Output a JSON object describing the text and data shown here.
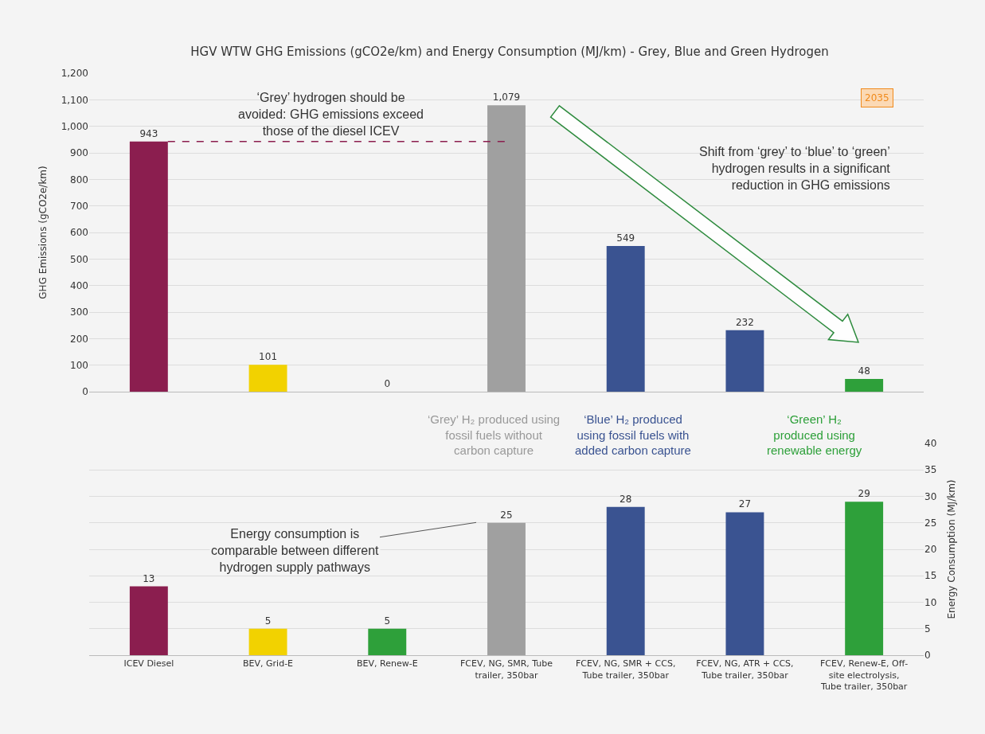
{
  "chart_data": [
    {
      "type": "bar",
      "title": "HGV WTW GHG Emissions (gCO2e/km) and Energy Consumption (MJ/km) - Grey, Blue and Green Hydrogen",
      "ylabel": "GHG Emissions (gCO2e/km)",
      "categories": [
        "ICEV Diesel",
        "BEV, Grid-E",
        "BEV, Renew-E",
        "FCEV, NG, SMR, Tube trailer, 350bar",
        "FCEV, NG, SMR + CCS, Tube trailer, 350bar",
        "FCEV, NG, ATR + CCS, Tube trailer, 350bar",
        "FCEV, Renew-E, Off-site electrolysis, Tube trailer, 350bar"
      ],
      "values": [
        943,
        101,
        0,
        1079,
        549,
        232,
        48
      ],
      "value_labels": [
        "943",
        "101",
        "0",
        "1,079",
        "549",
        "232",
        "48"
      ],
      "colors": [
        "#8b1e4f",
        "#f2d200",
        "#2ea03a",
        "#a0a0a0",
        "#3a5391",
        "#3a5391",
        "#2ea03a"
      ],
      "ylim": [
        0,
        1200
      ],
      "yticks": [
        0,
        100,
        200,
        300,
        400,
        500,
        600,
        700,
        800,
        900,
        {
          "value": 1000,
          "label": "1,000"
        },
        {
          "value": 1100,
          "label": "1,100"
        },
        {
          "value": 1200,
          "label": "1,200"
        }
      ],
      "grid": "y",
      "tick_labels": "y",
      "ref_lines": [
        {
          "axis": "y",
          "value": 943,
          "color": "#8b1e4f",
          "line_style": "dashed"
        }
      ],
      "annotations": [
        "‘Grey’ hydrogen should be avoided: GHG emissions exceed those of the diesel ICEV",
        "Shift from ‘grey’ to ‘blue’ to ‘green’ hydrogen results in a significant reduction in GHG emissions",
        "2035"
      ]
    },
    {
      "type": "bar",
      "y2label": "Energy Consumption (MJ/km)",
      "categories": [
        "ICEV Diesel",
        "BEV, Grid-E",
        "BEV, Renew-E",
        "FCEV, NG, SMR, Tube trailer, 350bar",
        "FCEV, NG, SMR + CCS, Tube trailer, 350bar",
        "FCEV, NG, ATR + CCS, Tube trailer, 350bar",
        "FCEV, Renew-E, Off-site electrolysis, Tube trailer, 350bar"
      ],
      "series": [
        {
          "axis": "y2",
          "values": [
            13,
            5,
            5,
            25,
            28,
            27,
            29
          ],
          "colors": [
            "#8b1e4f",
            "#f2d200",
            "#2ea03a",
            "#a0a0a0",
            "#3a5391",
            "#3a5391",
            "#2ea03a"
          ]
        }
      ],
      "data_labels": true,
      "y2lim": [
        0,
        40
      ],
      "y2ticks": [
        0,
        5,
        10,
        15,
        20,
        25,
        30,
        35,
        40
      ],
      "grid": "y",
      "annotations": [
        "‘Grey’ H₂ produced using fossil fuels without carbon capture",
        "‘Blue’ H₂ produced using fossil fuels with added carbon capture",
        "‘Green’ H₂ produced using renewable energy",
        "Energy consumption is comparable between different hydrogen supply pathways"
      ]
    }
  ]
}
